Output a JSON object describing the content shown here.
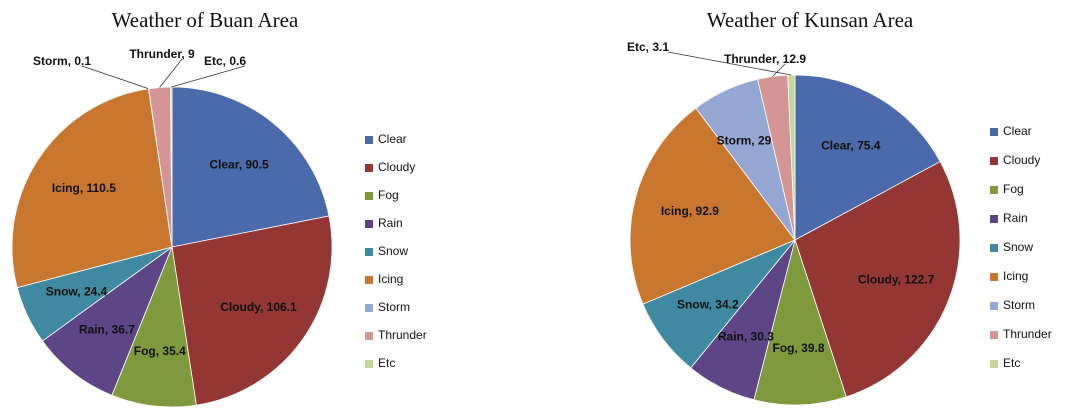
{
  "chart_data": [
    {
      "type": "pie",
      "title": "Weather of Buan Area",
      "categories": [
        "Clear",
        "Cloudy",
        "Fog",
        "Rain",
        "Snow",
        "Icing",
        "Storm",
        "Thrunder",
        "Etc"
      ],
      "values": [
        90.5,
        106.1,
        35.4,
        36.7,
        24.4,
        110.5,
        0.1,
        9,
        0.6
      ],
      "value_labels": [
        "Clear, 90.5",
        "Cloudy, 106.1",
        "Fog, 35.4",
        "Rain, 36.7",
        "Snow, 24.4",
        "Icing, 110.5",
        "Storm, 0.1",
        "Thrunder, 9",
        "Etc, 0.6"
      ],
      "colors": [
        "#4a6aab",
        "#943634",
        "#7f9a3d",
        "#5e4585",
        "#3f8aa0",
        "#c9772e",
        "#95a8d3",
        "#d69595",
        "#c4d79b"
      ],
      "legend": "right"
    },
    {
      "type": "pie",
      "title": "Weather of Kunsan Area",
      "categories": [
        "Clear",
        "Cloudy",
        "Fog",
        "Rain",
        "Snow",
        "Icing",
        "Storm",
        "Thrunder",
        "Etc"
      ],
      "values": [
        75.4,
        122.7,
        39.8,
        30.3,
        34.2,
        92.9,
        29.2,
        12.9,
        3.1
      ],
      "value_labels": [
        "Clear, 75.4",
        "Cloudy, 122.7",
        "Fog, 39.8",
        "Rain, 30.3",
        "Snow, 34.2",
        "Icing, 92.9",
        "Storm, 29.2",
        "Thrunder, 12.9",
        "Etc, 3.1"
      ],
      "colors": [
        "#4a6aab",
        "#943634",
        "#7f9a3d",
        "#5e4585",
        "#3f8aa0",
        "#c9772e",
        "#95a8d3",
        "#d69595",
        "#c4d79b"
      ],
      "legend": "right"
    }
  ]
}
